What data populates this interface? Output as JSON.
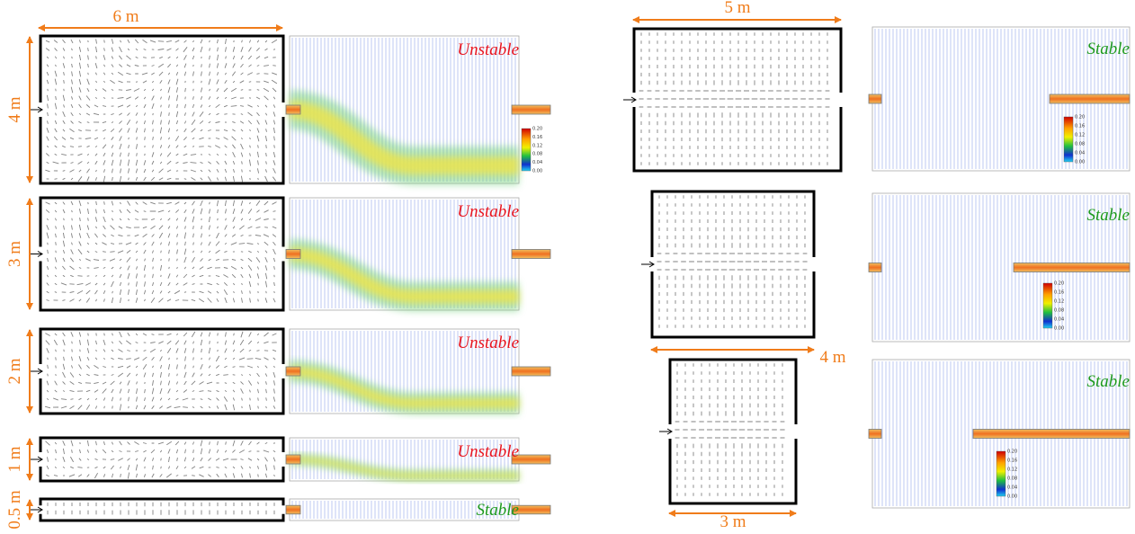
{
  "left_width_label": "6 m",
  "left_panels": [
    {
      "height_label": "4 m",
      "status": "Unstable"
    },
    {
      "height_label": "3 m",
      "status": "Unstable"
    },
    {
      "height_label": "2 m",
      "status": "Unstable"
    },
    {
      "height_label": "1 m",
      "status": "Unstable"
    },
    {
      "height_label": "0.5 m",
      "status": "Stable"
    }
  ],
  "right_panels": [
    {
      "width_label": "5 m",
      "status": "Stable"
    },
    {
      "width_label": "4 m",
      "status": "Stable"
    },
    {
      "width_label": "3 m",
      "status": "Stable"
    }
  ],
  "colorbar_ticks": [
    "0.20",
    "0.16",
    "0.12",
    "0.08",
    "0.04",
    "0.00"
  ]
}
